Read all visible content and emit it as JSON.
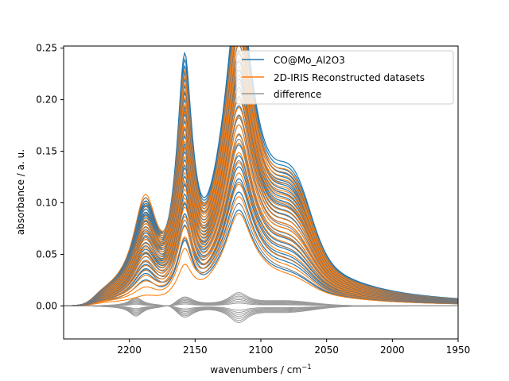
{
  "chart_data": {
    "type": "line",
    "title": "",
    "xlabel": "wavenumbers / cm",
    "xlabel_superscript": "−1",
    "ylabel": "absorbance / a. u.",
    "xlim": [
      2250,
      1950
    ],
    "ylim": [
      -0.032,
      0.252
    ],
    "x_inverted": true,
    "grid": false,
    "legend_position": "top-right",
    "x_ticks": [
      2200,
      2150,
      2100,
      2050,
      2000,
      1950
    ],
    "x_tick_labels": [
      "2200",
      "2150",
      "2100",
      "2050",
      "2000",
      "1950"
    ],
    "y_ticks": [
      0.0,
      0.05,
      0.1,
      0.15,
      0.2,
      0.25
    ],
    "y_tick_labels": [
      "0.00",
      "0.05",
      "0.10",
      "0.15",
      "0.20",
      "0.25"
    ],
    "legend": [
      {
        "label": "CO@Mo_Al2O3",
        "color": "#1f77b4"
      },
      {
        "label": "2D-IRIS Reconstructed datasets",
        "color": "#ff7f0e"
      },
      {
        "label": "difference",
        "color": "#999999"
      }
    ],
    "series": [
      {
        "name": "CO@Mo_Al2O3",
        "color": "#1f77b4",
        "max_peak_heights": [
          0.085,
          0.198,
          0.247
        ],
        "min_peak_heights": [
          0.02,
          0.05,
          0.075
        ]
      },
      {
        "name": "2D-IRIS Reconstructed datasets",
        "color": "#ff7f0e",
        "max_peak_heights": [
          0.093,
          0.19,
          0.24
        ],
        "min_peak_heights": [
          0.005,
          0.03,
          0.075
        ]
      },
      {
        "name": "difference",
        "color": "#999999",
        "max_value": 0.023,
        "min_value": -0.027
      }
    ],
    "peak_positions": [
      2188,
      2158,
      2117,
      2075
    ],
    "curve_count": 24
  },
  "colors": {
    "measured": "#1f77b4",
    "reconstructed": "#ff7f0e",
    "difference": "#999999"
  }
}
